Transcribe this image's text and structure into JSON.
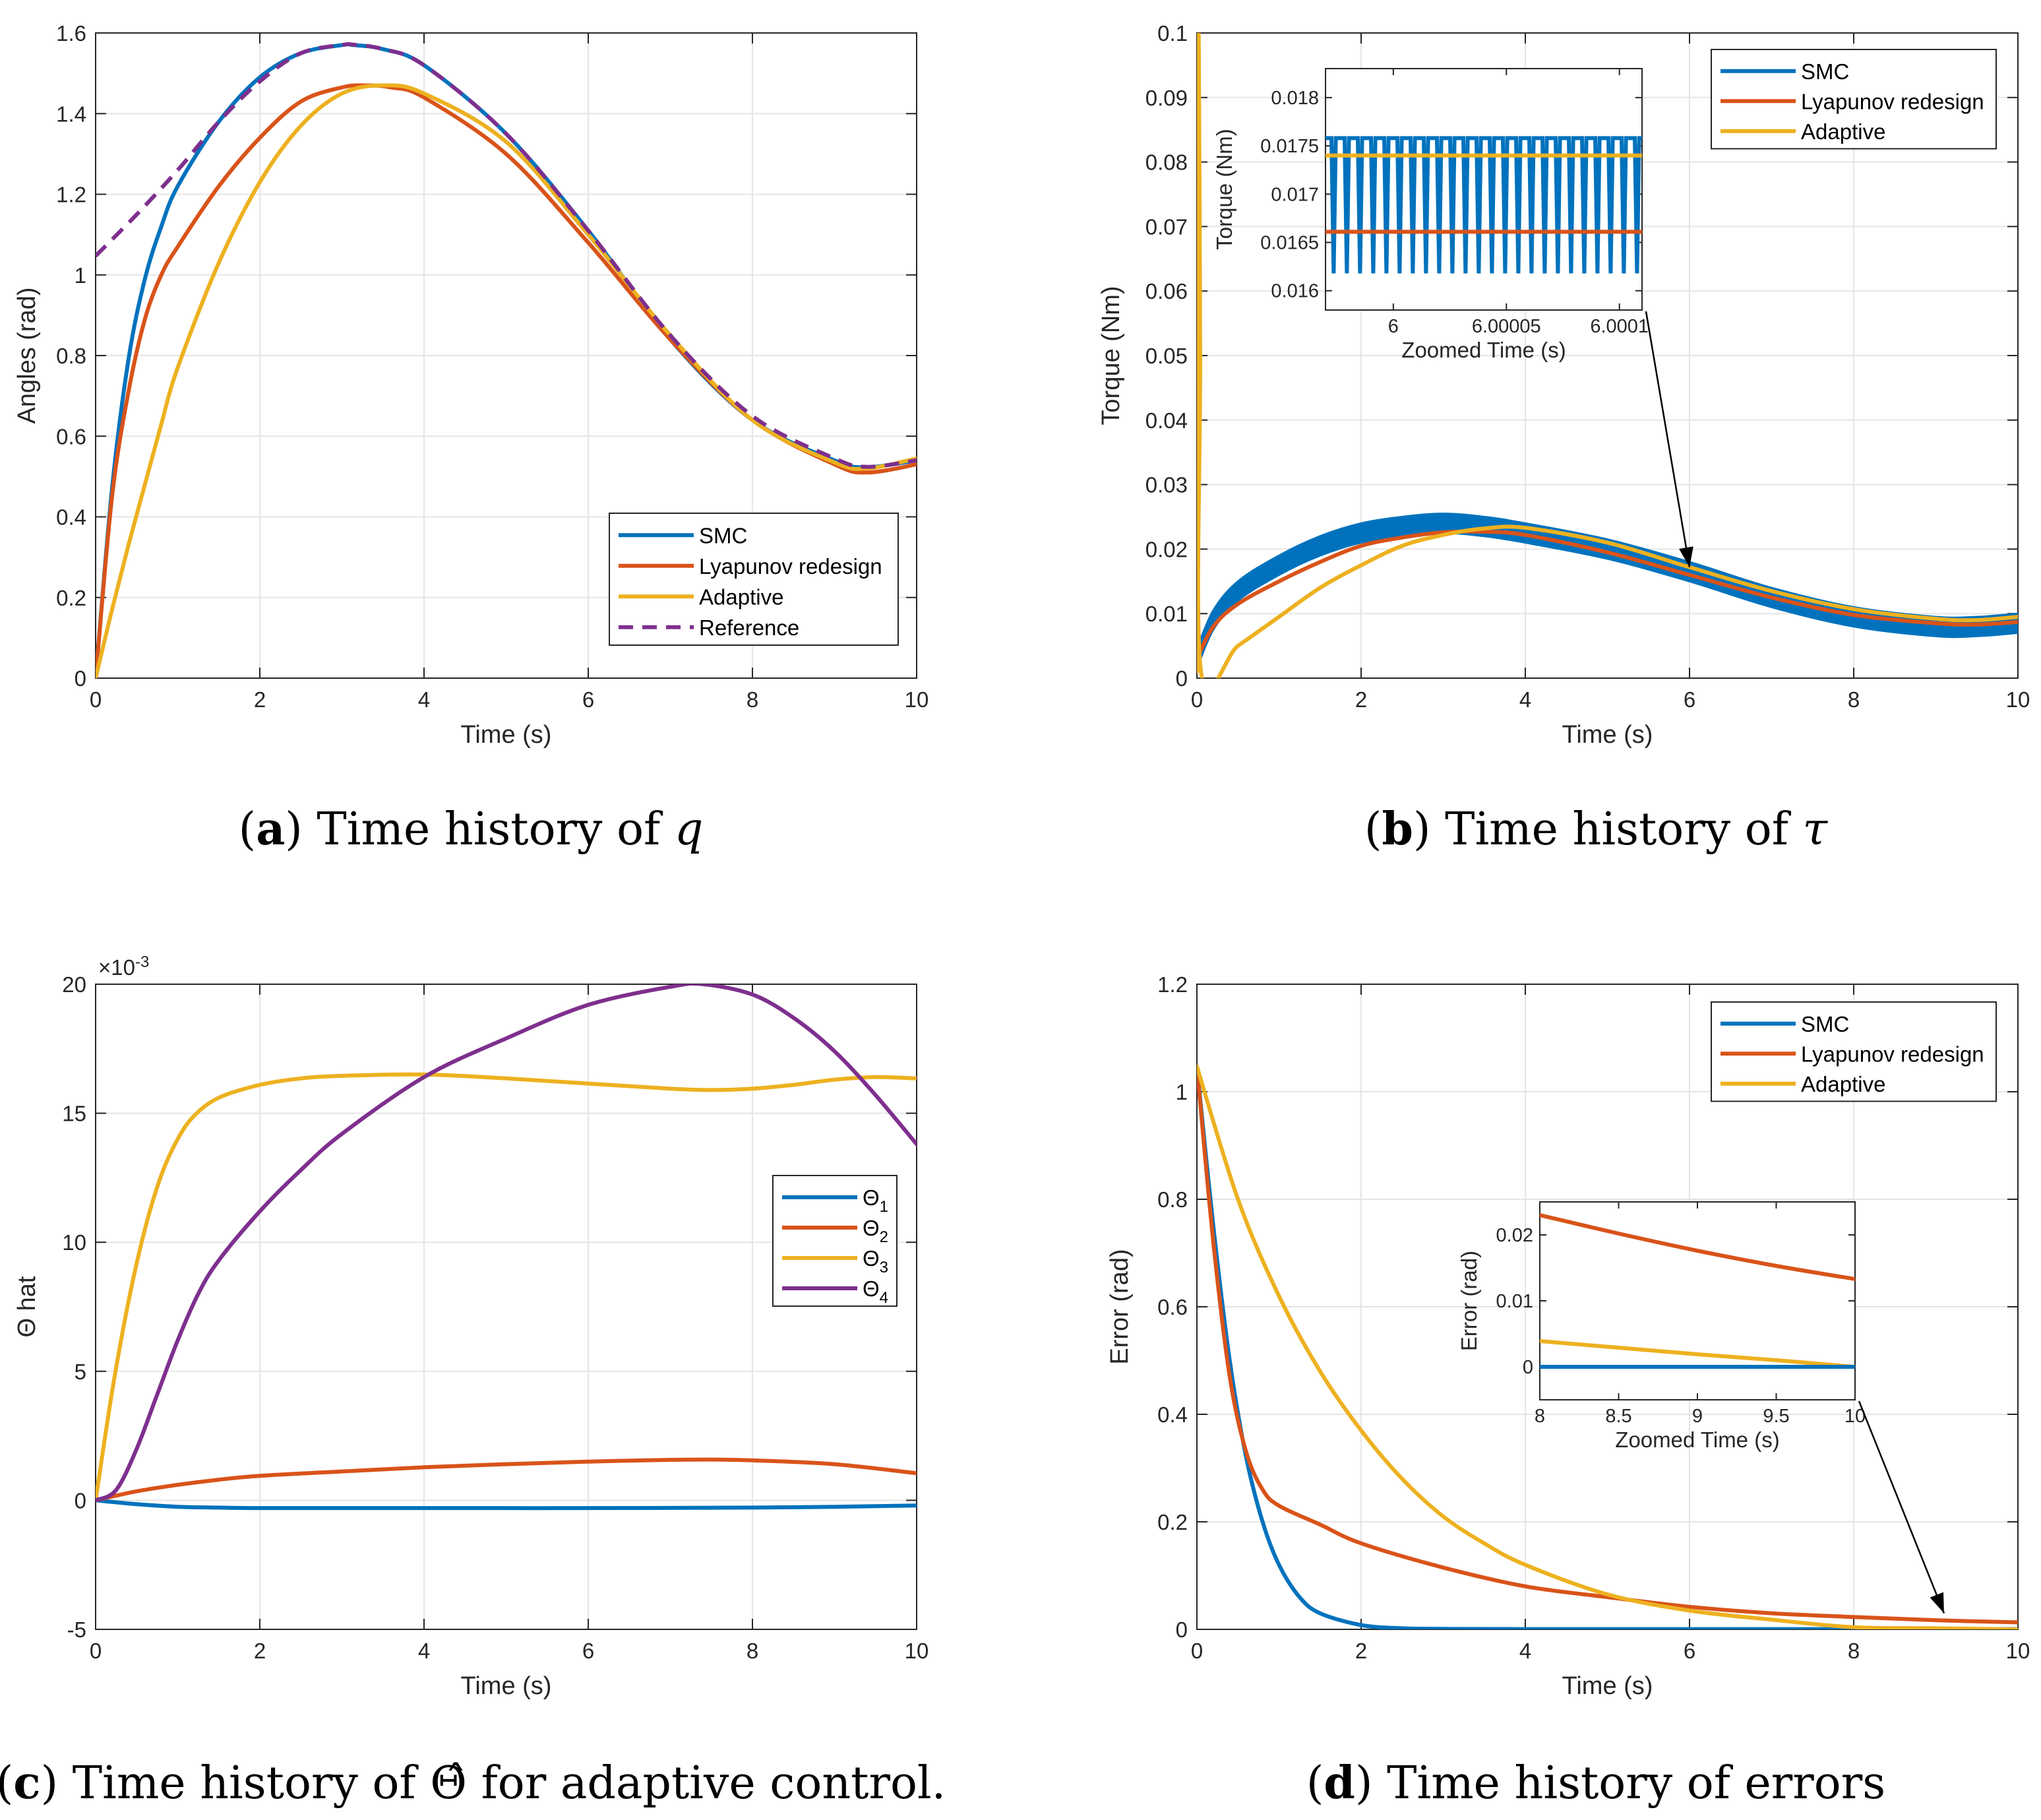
{
  "colors": {
    "smc": "#0072BD",
    "lyap": "#D95319",
    "adapt": "#EDB120",
    "ref": "#7E2F8E",
    "grid": "#e5e5e5",
    "axis": "#262626"
  },
  "panels": [
    {
      "id": "a",
      "caption": {
        "letter": "a",
        "prefix": " Time history of ",
        "symbol": "q",
        "suffix": ""
      },
      "chart_data": {
        "type": "line",
        "xlabel": "Time (s)",
        "ylabel": "Angles (rad)",
        "xlim": [
          0,
          10
        ],
        "ylim": [
          0,
          1.6
        ],
        "xticks": [
          0,
          2,
          4,
          6,
          8,
          10
        ],
        "yticks": [
          0,
          0.2,
          0.4,
          0.6,
          0.8,
          1,
          1.2,
          1.4,
          1.6
        ],
        "ytick_labels": [
          "0",
          "0.2",
          "0.4",
          "0.6",
          "0.8",
          "1",
          "1.2",
          "1.4",
          "1.6"
        ],
        "grid": true,
        "legend": "bottom-right",
        "series": [
          {
            "name": "SMC",
            "key": "smc",
            "x": [
              0,
              0.2,
              0.4,
              0.6,
              0.8,
              1,
              1.5,
              2,
              2.5,
              3,
              3.14,
              3.5,
              4,
              5,
              6,
              7,
              8,
              9,
              9.4,
              10
            ],
            "y": [
              0,
              0.47,
              0.79,
              0.99,
              1.12,
              1.22,
              1.38,
              1.49,
              1.55,
              1.57,
              1.57,
              1.56,
              1.52,
              1.35,
              1.11,
              0.84,
              0.64,
              0.54,
              0.523,
              0.54
            ]
          },
          {
            "name": "Lyapunov redesign",
            "key": "lyap",
            "x": [
              0,
              0.2,
              0.4,
              0.6,
              0.8,
              1,
              1.5,
              2,
              2.5,
              3,
              3.3,
              3.6,
              4,
              5,
              6,
              7,
              8,
              9,
              9.4,
              10
            ],
            "y": [
              0,
              0.45,
              0.71,
              0.89,
              1.0,
              1.07,
              1.22,
              1.34,
              1.43,
              1.465,
              1.47,
              1.465,
              1.44,
              1.3,
              1.08,
              0.84,
              0.64,
              0.53,
              0.51,
              0.53
            ]
          },
          {
            "name": "Adaptive",
            "key": "adapt",
            "x": [
              0,
              0.2,
              0.4,
              0.6,
              0.8,
              1,
              1.5,
              2,
              2.5,
              3,
              3.5,
              4,
              5,
              6,
              7,
              8,
              9,
              9.4,
              10
            ],
            "y": [
              0,
              0.17,
              0.33,
              0.48,
              0.63,
              0.77,
              1.03,
              1.23,
              1.37,
              1.45,
              1.47,
              1.45,
              1.33,
              1.1,
              0.85,
              0.64,
              0.535,
              0.52,
              0.545
            ]
          },
          {
            "name": "Reference",
            "key": "ref",
            "dashed": true,
            "x": [
              0,
              0.5,
              1,
              1.5,
              2,
              2.5,
              3,
              3.14,
              3.5,
              4,
              5,
              6,
              7,
              8,
              9,
              9.4,
              10
            ],
            "y": [
              1.047,
              1.15,
              1.26,
              1.38,
              1.48,
              1.55,
              1.57,
              1.571,
              1.56,
              1.52,
              1.35,
              1.11,
              0.85,
              0.65,
              0.545,
              0.524,
              0.54
            ]
          }
        ]
      }
    },
    {
      "id": "b",
      "caption": {
        "letter": "b",
        "prefix": " Time history of ",
        "symbol": "τ",
        "suffix": ""
      },
      "chart_data": {
        "type": "line",
        "xlabel": "Time (s)",
        "ylabel": "Torque (Nm)",
        "xlim": [
          0,
          10
        ],
        "ylim": [
          0,
          0.1
        ],
        "xticks": [
          0,
          2,
          4,
          6,
          8,
          10
        ],
        "yticks": [
          0,
          0.01,
          0.02,
          0.03,
          0.04,
          0.05,
          0.06,
          0.07,
          0.08,
          0.09,
          0.1
        ],
        "ytick_labels": [
          "0",
          "0.01",
          "0.02",
          "0.03",
          "0.04",
          "0.05",
          "0.06",
          "0.07",
          "0.08",
          "0.09",
          "0.1"
        ],
        "grid": true,
        "legend": "top-right",
        "series": [
          {
            "name": "SMC",
            "key": "smc",
            "band": 0.0015,
            "x": [
              0,
              0.2,
              0.5,
              1,
              1.5,
              2,
              2.5,
              3,
              3.5,
              4,
              5,
              6,
              7,
              8,
              9,
              9.5,
              10
            ],
            "y": [
              0.003,
              0.009,
              0.0135,
              0.0175,
              0.0205,
              0.0225,
              0.0235,
              0.024,
              0.0235,
              0.0225,
              0.02,
              0.0165,
              0.0125,
              0.0095,
              0.008,
              0.008,
              0.0085
            ]
          },
          {
            "name": "Lyapunov redesign",
            "key": "lyap",
            "x": [
              0,
              0.2,
              0.5,
              1,
              1.5,
              2,
              2.5,
              3,
              3.5,
              4,
              5,
              6,
              7,
              8,
              9,
              9.5,
              10
            ],
            "y": [
              0.003,
              0.008,
              0.0115,
              0.015,
              0.018,
              0.0205,
              0.0218,
              0.0226,
              0.0227,
              0.0222,
              0.0195,
              0.016,
              0.0125,
              0.0098,
              0.0085,
              0.0083,
              0.0087
            ]
          },
          {
            "name": "Adaptive",
            "key": "adapt",
            "x": [
              0,
              0.02,
              0.04,
              0.05,
              0.5,
              1,
              1.5,
              2,
              2.5,
              3,
              3.5,
              4,
              5,
              6,
              7,
              8,
              9,
              9.5,
              10
            ],
            "y": [
              0.001,
              0.1,
              0.05,
              0.001,
              0.005,
              0.0095,
              0.014,
              0.0175,
              0.0205,
              0.0222,
              0.0232,
              0.0233,
              0.021,
              0.0172,
              0.0135,
              0.0107,
              0.0092,
              0.009,
              0.0095
            ]
          }
        ],
        "annotations": [
          {
            "type": "arrow",
            "from": "inset",
            "to_x": 6,
            "to_y": 0.0172
          }
        ],
        "inset": {
          "xlabel": "Zoomed Time (s)",
          "ylabel": "Torque (Nm)",
          "xlim": [
            5.99997,
            6.00011
          ],
          "ylim": [
            0.0158,
            0.0183
          ],
          "xticks": [
            6,
            6.00005,
            6.0001
          ],
          "xtick_labels": [
            "6",
            "6.00005",
            "6.0001"
          ],
          "yticks": [
            0.016,
            0.0165,
            0.017,
            0.0175,
            0.018
          ],
          "ytick_labels": [
            "0.016",
            "0.0165",
            "0.017",
            "0.0175",
            "0.018"
          ],
          "smc_oscillation": {
            "high": 0.01758,
            "low": 0.01618,
            "cycles": 24
          },
          "adapt_level": 0.0174,
          "lyap_level": 0.01661
        }
      }
    },
    {
      "id": "c",
      "caption": {
        "letter": "c",
        "prefix": " Time history of ",
        "symbol": "Θ̂",
        "suffix": " for adaptive control."
      },
      "chart_data": {
        "type": "line",
        "xlabel": "Time (s)",
        "ylabel": "Θ hat",
        "exponent_label": {
          "base": "×10",
          "exp": "-3"
        },
        "xlim": [
          0,
          10
        ],
        "ylim": [
          -5,
          20
        ],
        "xticks": [
          0,
          2,
          4,
          6,
          8,
          10
        ],
        "yticks": [
          -5,
          0,
          5,
          10,
          15,
          20
        ],
        "ytick_labels": [
          "-5",
          "0",
          "5",
          "10",
          "15",
          "20"
        ],
        "grid": true,
        "legend": "right",
        "series": [
          {
            "name": "Θ",
            "sub": "1",
            "key": "smc",
            "x": [
              0,
              0.5,
              1,
              1.5,
              2,
              4,
              6,
              8,
              9,
              10
            ],
            "y": [
              0,
              -0.15,
              -0.25,
              -0.28,
              -0.3,
              -0.3,
              -0.3,
              -0.28,
              -0.25,
              -0.2
            ]
          },
          {
            "name": "Θ",
            "sub": "2",
            "key": "lyap",
            "x": [
              0,
              0.5,
              1,
              1.5,
              2,
              3,
              4,
              5,
              6,
              7,
              7.5,
              8,
              9,
              10
            ],
            "y": [
              0,
              0.35,
              0.6,
              0.8,
              0.95,
              1.12,
              1.28,
              1.4,
              1.5,
              1.57,
              1.58,
              1.55,
              1.4,
              1.05
            ]
          },
          {
            "name": "Θ",
            "sub": "3",
            "key": "adapt",
            "x": [
              0,
              0.2,
              0.4,
              0.6,
              0.8,
              1,
              1.2,
              1.5,
              2,
              2.5,
              3,
              4,
              5,
              6,
              7,
              7.5,
              8,
              8.5,
              9,
              9.5,
              10
            ],
            "y": [
              0,
              4.2,
              7.7,
              10.5,
              12.6,
              14.0,
              14.9,
              15.6,
              16.1,
              16.35,
              16.45,
              16.5,
              16.35,
              16.15,
              15.95,
              15.9,
              15.95,
              16.1,
              16.3,
              16.4,
              16.35
            ]
          },
          {
            "name": "Θ",
            "sub": "4",
            "key": "ref",
            "x": [
              0,
              0.25,
              0.5,
              0.75,
              1,
              1.25,
              1.5,
              2,
              2.5,
              3,
              4,
              5,
              6,
              7,
              7.4,
              8,
              8.5,
              9,
              9.5,
              10
            ],
            "y": [
              0,
              0.4,
              2.0,
              4.1,
              6.2,
              8.0,
              9.3,
              11.2,
              12.8,
              14.2,
              16.4,
              17.9,
              19.2,
              19.9,
              20.0,
              19.6,
              18.7,
              17.4,
              15.7,
              13.8
            ]
          }
        ]
      }
    },
    {
      "id": "d",
      "caption": {
        "letter": "d",
        "prefix": " Time history of errors",
        "symbol": "",
        "suffix": ""
      },
      "chart_data": {
        "type": "line",
        "xlabel": "Time (s)",
        "ylabel": "Error (rad)",
        "xlim": [
          0,
          10
        ],
        "ylim": [
          0,
          1.2
        ],
        "xticks": [
          0,
          2,
          4,
          6,
          8,
          10
        ],
        "yticks": [
          0,
          0.2,
          0.4,
          0.6,
          0.8,
          1,
          1.2
        ],
        "ytick_labels": [
          "0",
          "0.2",
          "0.4",
          "0.6",
          "0.8",
          "1",
          "1.2"
        ],
        "grid": true,
        "legend": "top-right",
        "series": [
          {
            "name": "SMC",
            "key": "smc",
            "x": [
              0,
              0.2,
              0.4,
              0.6,
              0.8,
              1,
              1.25,
              1.5,
              2,
              2.5,
              3,
              4,
              10
            ],
            "y": [
              1.047,
              0.75,
              0.5,
              0.32,
              0.2,
              0.12,
              0.06,
              0.03,
              0.008,
              0.002,
              0.001,
              0.0005,
              0.0005
            ]
          },
          {
            "name": "Lyapunov redesign",
            "key": "lyap",
            "x": [
              0,
              0.2,
              0.4,
              0.6,
              0.8,
              1,
              1.5,
              2,
              3,
              4,
              5,
              6,
              7,
              8,
              9,
              10
            ],
            "y": [
              1.047,
              0.72,
              0.47,
              0.33,
              0.26,
              0.23,
              0.195,
              0.16,
              0.115,
              0.08,
              0.06,
              0.042,
              0.03,
              0.023,
              0.017,
              0.013
            ]
          },
          {
            "name": "Adaptive",
            "key": "adapt",
            "x": [
              0,
              0.5,
              1,
              1.5,
              2,
              2.5,
              3,
              3.5,
              4,
              5,
              6,
              7,
              8,
              9,
              10
            ],
            "y": [
              1.047,
              0.8,
              0.62,
              0.48,
              0.37,
              0.28,
              0.21,
              0.16,
              0.12,
              0.065,
              0.035,
              0.018,
              0.004,
              0.002,
              0.0
            ]
          }
        ],
        "annotations": [
          {
            "type": "arrow",
            "from": "inset",
            "to_x": 9.1,
            "to_y": 0.03
          }
        ],
        "inset": {
          "xlabel": "Zoomed Time (s)",
          "ylabel": "Error (rad)",
          "xlim": [
            8,
            10
          ],
          "ylim": [
            -0.005,
            0.025
          ],
          "xticks": [
            8,
            8.5,
            9,
            9.5,
            10
          ],
          "xtick_labels": [
            "8",
            "8.5",
            "9",
            "9.5",
            "10"
          ],
          "yticks": [
            0,
            0.01,
            0.02
          ],
          "ytick_labels": [
            "0",
            "0.01",
            "0.02"
          ],
          "series": [
            {
              "key": "lyap",
              "x": [
                8,
                8.5,
                9,
                9.5,
                10
              ],
              "y": [
                0.023,
                0.0202,
                0.0176,
                0.0153,
                0.0133
              ]
            },
            {
              "key": "adapt",
              "x": [
                8,
                8.5,
                9,
                9.5,
                10
              ],
              "y": [
                0.0039,
                0.0029,
                0.0019,
                0.001,
                0.0
              ]
            },
            {
              "key": "smc",
              "x": [
                8,
                9,
                10
              ],
              "y": [
                0.0,
                0.0,
                0.0
              ]
            }
          ]
        }
      }
    }
  ]
}
